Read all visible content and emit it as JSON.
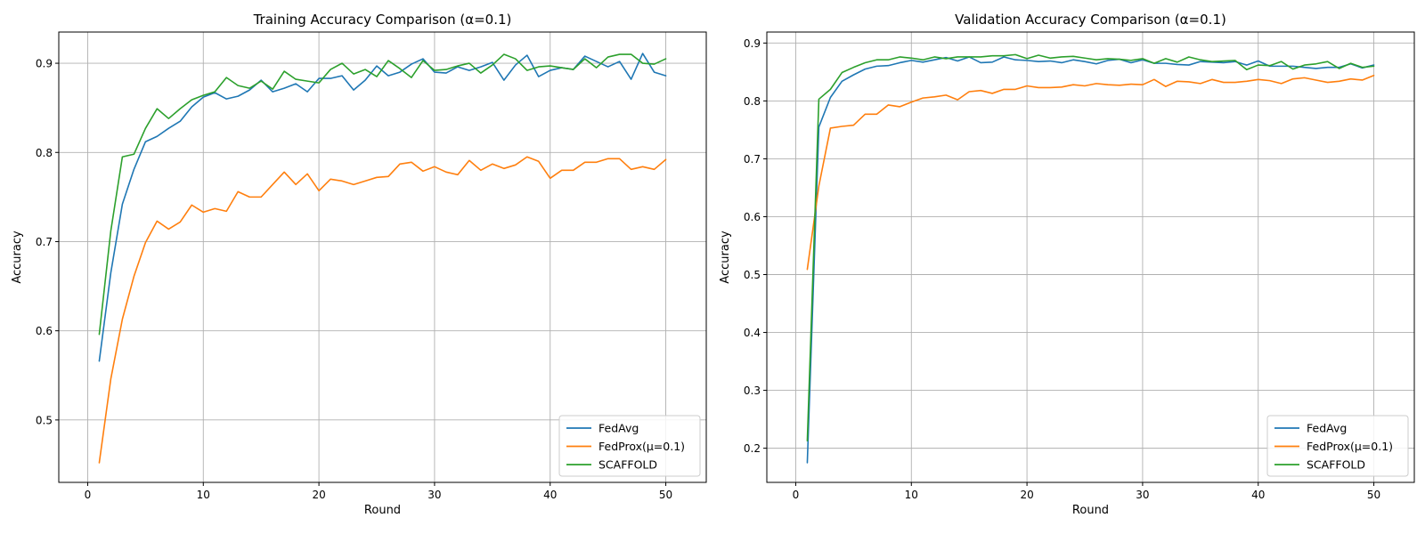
{
  "chart_data": [
    {
      "type": "line",
      "title": "Training Accuracy Comparison (α=0.1)",
      "xlabel": "Round",
      "ylabel": "Accuracy",
      "xlim": [
        -2.5,
        53.5
      ],
      "ylim": [
        0.43,
        0.935
      ],
      "xticks": [
        0,
        10,
        20,
        30,
        40,
        50
      ],
      "yticks": [
        0.5,
        0.6,
        0.7,
        0.8,
        0.9
      ],
      "ytick_labels": [
        "0.5",
        "0.6",
        "0.7",
        "0.8",
        "0.9"
      ],
      "grid": true,
      "legend_position": "lower-right",
      "x": [
        1,
        2,
        3,
        4,
        5,
        6,
        7,
        8,
        9,
        10,
        11,
        12,
        13,
        14,
        15,
        16,
        17,
        18,
        19,
        20,
        21,
        22,
        23,
        24,
        25,
        26,
        27,
        28,
        29,
        30,
        31,
        32,
        33,
        34,
        35,
        36,
        37,
        38,
        39,
        40,
        41,
        42,
        43,
        44,
        45,
        46,
        47,
        48,
        49,
        50
      ],
      "series": [
        {
          "name": "FedAvg",
          "color": "#1f77b4",
          "values": [
            0.566,
            0.665,
            0.742,
            0.781,
            0.812,
            0.818,
            0.827,
            0.835,
            0.851,
            0.862,
            0.867,
            0.86,
            0.863,
            0.87,
            0.881,
            0.868,
            0.872,
            0.877,
            0.868,
            0.883,
            0.883,
            0.886,
            0.87,
            0.881,
            0.897,
            0.886,
            0.89,
            0.899,
            0.905,
            0.89,
            0.889,
            0.896,
            0.892,
            0.896,
            0.901,
            0.881,
            0.898,
            0.909,
            0.885,
            0.892,
            0.895,
            0.893,
            0.908,
            0.902,
            0.896,
            0.902,
            0.882,
            0.911,
            0.89,
            0.886
          ]
        },
        {
          "name": "FedProx(μ=0.1)",
          "color": "#ff7f0e",
          "values": [
            0.452,
            0.546,
            0.613,
            0.661,
            0.699,
            0.723,
            0.714,
            0.722,
            0.741,
            0.733,
            0.737,
            0.734,
            0.756,
            0.75,
            0.75,
            0.764,
            0.778,
            0.764,
            0.776,
            0.757,
            0.77,
            0.768,
            0.764,
            0.768,
            0.772,
            0.773,
            0.787,
            0.789,
            0.779,
            0.784,
            0.778,
            0.775,
            0.791,
            0.78,
            0.787,
            0.782,
            0.786,
            0.795,
            0.79,
            0.771,
            0.78,
            0.78,
            0.789,
            0.789,
            0.793,
            0.793,
            0.781,
            0.784,
            0.781,
            0.792
          ]
        },
        {
          "name": "SCAFFOLD",
          "color": "#2ca02c",
          "values": [
            0.596,
            0.712,
            0.795,
            0.798,
            0.827,
            0.849,
            0.838,
            0.849,
            0.859,
            0.864,
            0.868,
            0.884,
            0.875,
            0.872,
            0.88,
            0.871,
            0.891,
            0.882,
            0.88,
            0.878,
            0.893,
            0.9,
            0.888,
            0.893,
            0.885,
            0.903,
            0.894,
            0.884,
            0.903,
            0.892,
            0.893,
            0.897,
            0.9,
            0.889,
            0.898,
            0.91,
            0.905,
            0.892,
            0.896,
            0.897,
            0.895,
            0.893,
            0.905,
            0.895,
            0.907,
            0.91,
            0.91,
            0.9,
            0.899,
            0.905
          ]
        }
      ]
    },
    {
      "type": "line",
      "title": "Validation Accuracy Comparison (α=0.1)",
      "xlabel": "Round",
      "ylabel": "Accuracy",
      "xlim": [
        -2.5,
        53.5
      ],
      "ylim": [
        0.141,
        0.919
      ],
      "xticks": [
        0,
        10,
        20,
        30,
        40,
        50
      ],
      "yticks": [
        0.2,
        0.3,
        0.4,
        0.5,
        0.6,
        0.7,
        0.8,
        0.9
      ],
      "ytick_labels": [
        "0.2",
        "0.3",
        "0.4",
        "0.5",
        "0.6",
        "0.7",
        "0.8",
        "0.9"
      ],
      "grid": true,
      "legend_position": "lower-right",
      "x": [
        1,
        2,
        3,
        4,
        5,
        6,
        7,
        8,
        9,
        10,
        11,
        12,
        13,
        14,
        15,
        16,
        17,
        18,
        19,
        20,
        21,
        22,
        23,
        24,
        25,
        26,
        27,
        28,
        29,
        30,
        31,
        32,
        33,
        34,
        35,
        36,
        37,
        38,
        39,
        40,
        41,
        42,
        43,
        44,
        45,
        46,
        47,
        48,
        49,
        50
      ],
      "series": [
        {
          "name": "FedAvg",
          "color": "#1f77b4",
          "values": [
            0.175,
            0.755,
            0.806,
            0.834,
            0.845,
            0.855,
            0.86,
            0.861,
            0.866,
            0.87,
            0.867,
            0.871,
            0.875,
            0.869,
            0.876,
            0.866,
            0.867,
            0.876,
            0.871,
            0.87,
            0.868,
            0.869,
            0.866,
            0.871,
            0.868,
            0.864,
            0.87,
            0.872,
            0.866,
            0.871,
            0.865,
            0.865,
            0.863,
            0.862,
            0.868,
            0.867,
            0.866,
            0.868,
            0.862,
            0.869,
            0.86,
            0.86,
            0.86,
            0.858,
            0.856,
            0.858,
            0.858,
            0.864,
            0.857,
            0.862
          ]
        },
        {
          "name": "FedProx(μ=0.1)",
          "color": "#ff7f0e",
          "values": [
            0.509,
            0.653,
            0.753,
            0.756,
            0.758,
            0.777,
            0.777,
            0.793,
            0.79,
            0.798,
            0.805,
            0.807,
            0.81,
            0.802,
            0.816,
            0.818,
            0.813,
            0.82,
            0.82,
            0.826,
            0.823,
            0.823,
            0.824,
            0.828,
            0.826,
            0.83,
            0.828,
            0.827,
            0.829,
            0.828,
            0.837,
            0.825,
            0.834,
            0.833,
            0.83,
            0.837,
            0.832,
            0.832,
            0.834,
            0.837,
            0.835,
            0.83,
            0.838,
            0.84,
            0.836,
            0.832,
            0.834,
            0.838,
            0.836,
            0.844
          ]
        },
        {
          "name": "SCAFFOLD",
          "color": "#2ca02c",
          "values": [
            0.213,
            0.803,
            0.82,
            0.849,
            0.858,
            0.866,
            0.871,
            0.871,
            0.876,
            0.874,
            0.871,
            0.876,
            0.873,
            0.876,
            0.876,
            0.876,
            0.878,
            0.878,
            0.88,
            0.873,
            0.879,
            0.874,
            0.876,
            0.877,
            0.874,
            0.871,
            0.873,
            0.872,
            0.87,
            0.873,
            0.865,
            0.873,
            0.867,
            0.876,
            0.871,
            0.868,
            0.869,
            0.87,
            0.854,
            0.862,
            0.861,
            0.868,
            0.855,
            0.862,
            0.864,
            0.868,
            0.856,
            0.865,
            0.858,
            0.86
          ]
        }
      ]
    }
  ]
}
